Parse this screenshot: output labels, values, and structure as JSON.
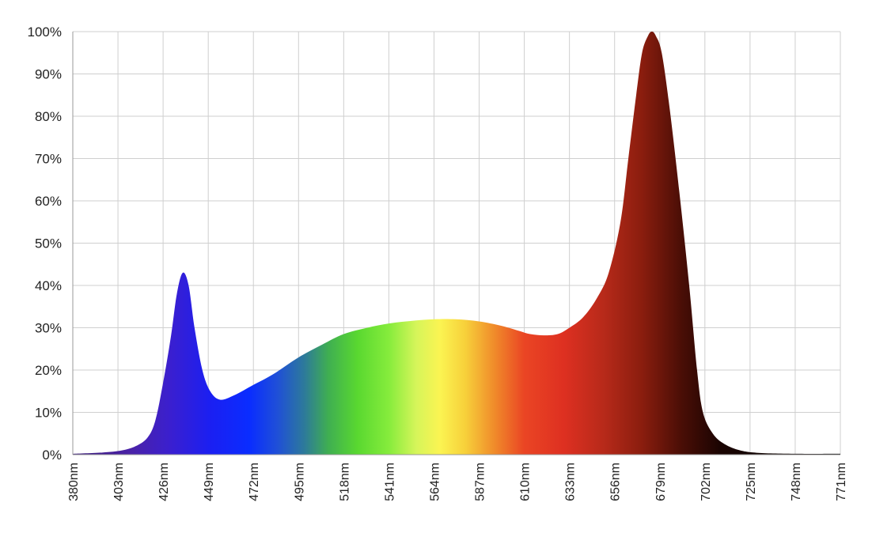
{
  "chart_data": {
    "type": "area",
    "x_unit": "nm",
    "y_unit": "%",
    "xlim": [
      380,
      771
    ],
    "ylim": [
      0,
      100
    ],
    "grid": true,
    "x_ticks": [
      380,
      403,
      426,
      449,
      472,
      495,
      518,
      541,
      564,
      587,
      610,
      633,
      656,
      679,
      702,
      725,
      748,
      771
    ],
    "x_tick_labels": [
      "380nm",
      "403nm",
      "426nm",
      "449nm",
      "472nm",
      "495nm",
      "518nm",
      "541nm",
      "564nm",
      "587nm",
      "610nm",
      "633nm",
      "656nm",
      "679nm",
      "702nm",
      "725nm",
      "748nm",
      "771nm"
    ],
    "y_ticks": [
      0,
      10,
      20,
      30,
      40,
      50,
      60,
      70,
      80,
      90,
      100
    ],
    "y_tick_labels": [
      "0%",
      "10%",
      "20%",
      "30%",
      "40%",
      "50%",
      "60%",
      "70%",
      "80%",
      "90%",
      "100%"
    ],
    "series": [
      {
        "fill": "visible-spectrum-gradient",
        "points": [
          [
            380,
            0.2
          ],
          [
            395,
            0.5
          ],
          [
            405,
            1
          ],
          [
            412,
            2
          ],
          [
            418,
            4
          ],
          [
            422,
            8
          ],
          [
            426,
            17
          ],
          [
            430,
            28
          ],
          [
            433,
            38
          ],
          [
            436,
            43
          ],
          [
            439,
            40
          ],
          [
            442,
            30
          ],
          [
            446,
            20
          ],
          [
            450,
            15
          ],
          [
            455,
            13
          ],
          [
            462,
            14
          ],
          [
            472,
            16.5
          ],
          [
            482,
            19
          ],
          [
            495,
            23
          ],
          [
            507,
            26
          ],
          [
            518,
            28.5
          ],
          [
            530,
            30
          ],
          [
            541,
            31
          ],
          [
            552,
            31.6
          ],
          [
            564,
            32
          ],
          [
            575,
            32
          ],
          [
            587,
            31.5
          ],
          [
            598,
            30.5
          ],
          [
            607,
            29.3
          ],
          [
            613,
            28.5
          ],
          [
            620,
            28.2
          ],
          [
            627,
            28.5
          ],
          [
            633,
            30
          ],
          [
            640,
            32.5
          ],
          [
            647,
            37
          ],
          [
            653,
            43
          ],
          [
            659,
            55
          ],
          [
            663,
            70
          ],
          [
            667,
            85
          ],
          [
            670,
            95
          ],
          [
            673,
            99
          ],
          [
            675,
            100
          ],
          [
            677,
            99
          ],
          [
            680,
            95
          ],
          [
            684,
            82
          ],
          [
            689,
            62
          ],
          [
            694,
            40
          ],
          [
            698,
            20
          ],
          [
            701,
            10
          ],
          [
            706,
            5
          ],
          [
            712,
            2.5
          ],
          [
            720,
            1
          ],
          [
            730,
            0.4
          ],
          [
            750,
            0.2
          ],
          [
            771,
            0.2
          ]
        ]
      }
    ],
    "gradient_stops": [
      {
        "nm": 380,
        "color": "#3a1a7a"
      },
      {
        "nm": 410,
        "color": "#4a22a8"
      },
      {
        "nm": 430,
        "color": "#3a1fd0"
      },
      {
        "nm": 450,
        "color": "#1b1ff2"
      },
      {
        "nm": 470,
        "color": "#0a2dff"
      },
      {
        "nm": 484,
        "color": "#1f4fd8"
      },
      {
        "nm": 498,
        "color": "#2d7a9a"
      },
      {
        "nm": 510,
        "color": "#3fae52"
      },
      {
        "nm": 525,
        "color": "#59d830"
      },
      {
        "nm": 541,
        "color": "#86ec3c"
      },
      {
        "nm": 555,
        "color": "#d6f55a"
      },
      {
        "nm": 567,
        "color": "#fbf452"
      },
      {
        "nm": 580,
        "color": "#f7d03a"
      },
      {
        "nm": 595,
        "color": "#f08a2a"
      },
      {
        "nm": 610,
        "color": "#ea4524"
      },
      {
        "nm": 630,
        "color": "#de3021"
      },
      {
        "nm": 650,
        "color": "#b82a1a"
      },
      {
        "nm": 670,
        "color": "#8a1d0e"
      },
      {
        "nm": 690,
        "color": "#4a0e06"
      },
      {
        "nm": 710,
        "color": "#1a0402"
      },
      {
        "nm": 771,
        "color": "#000000"
      }
    ]
  }
}
